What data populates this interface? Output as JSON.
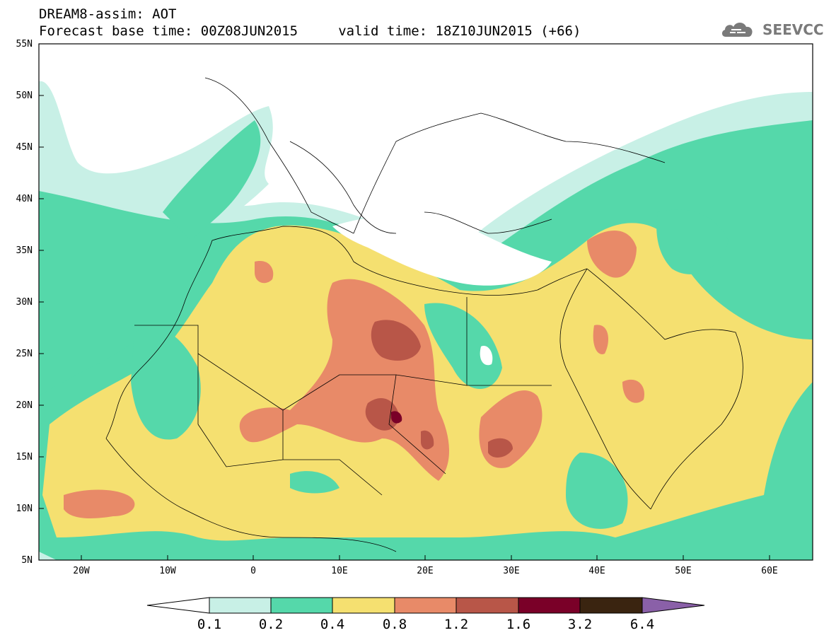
{
  "header": {
    "title_line1": "DREAM8-assim: AOT",
    "title_line2": "Forecast base time: 00Z08JUN2015     valid time: 18Z10JUN2015 (+66)",
    "logo_text": "SEEVCCC"
  },
  "axes": {
    "lat_labels": [
      "55N",
      "50N",
      "45N",
      "40N",
      "35N",
      "30N",
      "25N",
      "20N",
      "15N",
      "10N",
      "5N"
    ],
    "lon_labels": [
      "20W",
      "10W",
      "0",
      "10E",
      "20E",
      "30E",
      "40E",
      "50E",
      "60E"
    ]
  },
  "colorbar": {
    "labels": [
      "0.1",
      "0.2",
      "0.4",
      "0.8",
      "1.2",
      "1.6",
      "3.2",
      "6.4"
    ],
    "colors": [
      "#ffffff",
      "#c8f0e6",
      "#55d8aa",
      "#f5e070",
      "#e88a68",
      "#b85648",
      "#7a0028",
      "#3a2410",
      "#8a60a8"
    ]
  },
  "map_colors": {
    "level_0_1": "#c8f0e6",
    "level_0_2": "#55d8aa",
    "level_0_4": "#f5e070",
    "level_0_8": "#e88a68",
    "level_1_2": "#b85648",
    "level_1_6": "#7a0028"
  }
}
